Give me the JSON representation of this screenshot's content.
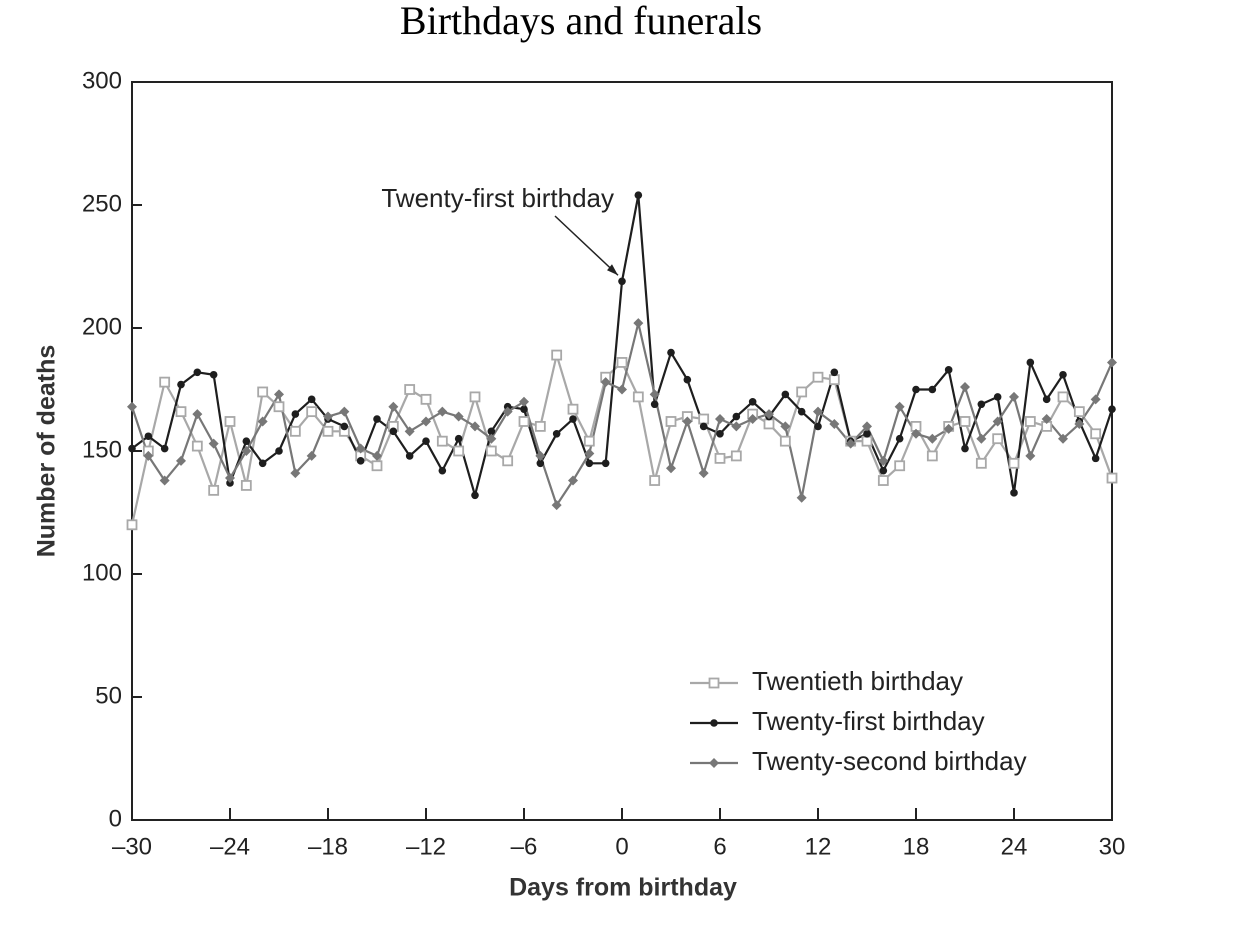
{
  "chart_data": {
    "type": "line",
    "title": "Birthdays and funerals",
    "x_label": "Days from birthday",
    "y_label": "Number of deaths",
    "annotation": "Twenty-first birthday",
    "x": [
      -30,
      -29,
      -28,
      -27,
      -26,
      -25,
      -24,
      -23,
      -22,
      -21,
      -20,
      -19,
      -18,
      -17,
      -16,
      -15,
      -14,
      -13,
      -12,
      -11,
      -10,
      -9,
      -8,
      -7,
      -6,
      -5,
      -4,
      -3,
      -2,
      -1,
      0,
      1,
      2,
      3,
      4,
      5,
      6,
      7,
      8,
      9,
      10,
      11,
      12,
      13,
      14,
      15,
      16,
      17,
      18,
      19,
      20,
      21,
      22,
      23,
      24,
      25,
      26,
      27,
      28,
      29,
      30
    ],
    "series": [
      {
        "name": "Twentieth birthday",
        "color": "#a8a8a8",
        "marker": "square",
        "values": [
          120,
          150,
          178,
          166,
          152,
          134,
          162,
          136,
          174,
          168,
          158,
          166,
          158,
          158,
          148,
          144,
          160,
          175,
          171,
          154,
          150,
          172,
          150,
          146,
          162,
          160,
          189,
          167,
          154,
          180,
          186,
          172,
          138,
          162,
          164,
          163,
          147,
          148,
          165,
          161,
          154,
          174,
          180,
          179,
          154,
          154,
          138,
          144,
          160,
          148,
          160,
          162,
          145,
          155,
          145,
          162,
          160,
          172,
          166,
          157,
          139
        ]
      },
      {
        "name": "Twenty-first birthday",
        "color": "#1e1e1e",
        "marker": "circle",
        "values": [
          151,
          156,
          151,
          177,
          182,
          181,
          137,
          154,
          145,
          150,
          165,
          171,
          163,
          160,
          146,
          163,
          158,
          148,
          154,
          142,
          155,
          132,
          158,
          168,
          167,
          145,
          157,
          163,
          145,
          145,
          219,
          254,
          169,
          190,
          179,
          160,
          157,
          164,
          170,
          164,
          173,
          166,
          160,
          182,
          154,
          157,
          142,
          155,
          175,
          175,
          183,
          151,
          169,
          172,
          133,
          186,
          171,
          181,
          162,
          147,
          167
        ]
      },
      {
        "name": "Twenty-second birthday",
        "color": "#777777",
        "marker": "diamond",
        "values": [
          168,
          148,
          138,
          146,
          165,
          153,
          139,
          150,
          162,
          173,
          141,
          148,
          164,
          166,
          151,
          148,
          168,
          158,
          162,
          166,
          164,
          160,
          155,
          166,
          170,
          148,
          128,
          138,
          149,
          178,
          175,
          202,
          173,
          143,
          162,
          141,
          163,
          160,
          163,
          165,
          160,
          131,
          166,
          161,
          153,
          160,
          146,
          168,
          157,
          155,
          159,
          176,
          155,
          162,
          172,
          148,
          163,
          155,
          161,
          171,
          186
        ]
      }
    ],
    "xlim": [
      -30,
      30
    ],
    "xticks": [
      {
        "value": -30,
        "label": "–30"
      },
      {
        "value": -24,
        "label": "–24"
      },
      {
        "value": -18,
        "label": "–18"
      },
      {
        "value": -12,
        "label": "–12"
      },
      {
        "value": -6,
        "label": "–6"
      },
      0,
      6,
      12,
      18,
      24,
      30
    ],
    "ylim": [
      0,
      300
    ],
    "yticks": [
      0,
      50,
      100,
      150,
      200,
      250,
      300
    ],
    "grid": false,
    "legend": "lower right"
  }
}
